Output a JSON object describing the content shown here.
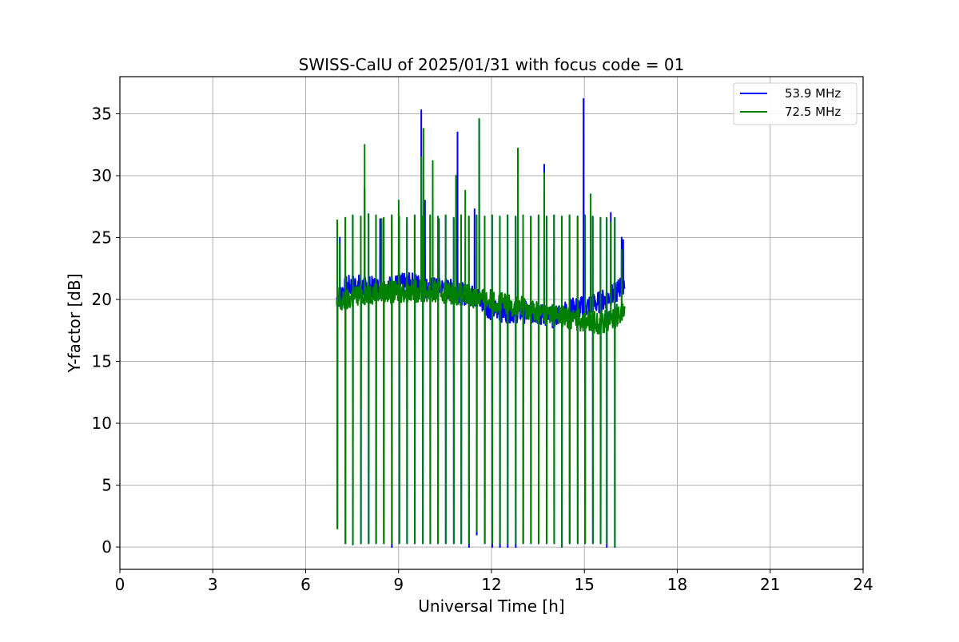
{
  "chart_data": {
    "type": "line",
    "title": "SWISS-CalU of 2025/01/31 with focus code = 01",
    "xlabel": "Universal Time [h]",
    "ylabel": "Y-factor [dB]",
    "xlim": [
      0,
      24
    ],
    "ylim": [
      -1.8,
      38
    ],
    "xticks": [
      0,
      3,
      6,
      9,
      12,
      15,
      18,
      21,
      24
    ],
    "yticks": [
      0,
      5,
      10,
      15,
      20,
      25,
      30,
      35
    ],
    "xtick_labels": [
      "0",
      "3",
      "6",
      "9",
      "12",
      "15",
      "18",
      "21",
      "24"
    ],
    "ytick_labels": [
      "0",
      "5",
      "10",
      "15",
      "20",
      "25",
      "30",
      "35"
    ],
    "grid": true,
    "legend_position": "top-right",
    "x_range_of_data": [
      7.0,
      16.3
    ],
    "series": [
      {
        "name": "53.9 MHz",
        "color": "#0000ff",
        "baseline": [
          [
            7.0,
            20.0
          ],
          [
            7.3,
            21.0
          ],
          [
            7.6,
            21.2
          ],
          [
            8.0,
            21.0
          ],
          [
            8.5,
            20.9
          ],
          [
            9.0,
            21.2
          ],
          [
            9.5,
            21.3
          ],
          [
            10.0,
            20.9
          ],
          [
            10.5,
            20.9
          ],
          [
            11.0,
            20.5
          ],
          [
            11.5,
            20.2
          ],
          [
            12.0,
            19.2
          ],
          [
            12.5,
            19.0
          ],
          [
            13.0,
            19.0
          ],
          [
            13.5,
            18.8
          ],
          [
            14.0,
            18.6
          ],
          [
            14.5,
            19.2
          ],
          [
            15.0,
            19.4
          ],
          [
            15.5,
            19.8
          ],
          [
            16.0,
            20.5
          ],
          [
            16.3,
            21.5
          ]
        ],
        "calibration_spikes": [
          [
            7.02,
            1.5,
            26.4
          ],
          [
            7.28,
            0.3,
            26.6
          ],
          [
            7.52,
            0.2,
            26.8
          ],
          [
            7.78,
            0.3,
            26.7
          ],
          [
            8.03,
            0.3,
            26.9
          ],
          [
            8.27,
            0.3,
            26.8
          ],
          [
            8.52,
            0.3,
            26.6
          ],
          [
            8.78,
            0.0,
            26.8
          ],
          [
            9.02,
            0.3,
            26.7
          ],
          [
            9.27,
            0.3,
            26.6
          ],
          [
            9.52,
            0.3,
            26.8
          ],
          [
            9.78,
            0.3,
            26.7
          ],
          [
            10.02,
            0.3,
            26.8
          ],
          [
            10.27,
            0.3,
            26.7
          ],
          [
            10.52,
            0.3,
            26.8
          ],
          [
            10.78,
            0.3,
            26.6
          ],
          [
            11.02,
            0.3,
            26.8
          ],
          [
            11.27,
            0.0,
            26.7
          ],
          [
            11.52,
            1.0,
            26.8
          ],
          [
            11.78,
            0.3,
            26.7
          ],
          [
            12.02,
            0.0,
            26.8
          ],
          [
            12.27,
            0.0,
            26.7
          ],
          [
            12.52,
            0.0,
            26.8
          ],
          [
            12.78,
            0.0,
            26.7
          ],
          [
            13.02,
            0.3,
            26.8
          ],
          [
            13.27,
            0.3,
            26.7
          ],
          [
            13.52,
            0.3,
            26.8
          ],
          [
            13.78,
            0.3,
            26.7
          ],
          [
            14.02,
            0.3,
            26.8
          ],
          [
            14.27,
            0.0,
            26.7
          ],
          [
            14.52,
            0.3,
            26.8
          ],
          [
            14.78,
            0.3,
            26.7
          ],
          [
            15.02,
            0.3,
            26.8
          ],
          [
            15.27,
            0.3,
            26.7
          ],
          [
            15.52,
            0.3,
            26.6
          ],
          [
            15.72,
            0.0,
            26.6
          ],
          [
            15.98,
            0.0,
            26.6
          ]
        ],
        "rfi_peaks": [
          [
            7.1,
            25.0
          ],
          [
            7.9,
            29.0
          ],
          [
            8.4,
            26.5
          ],
          [
            9.73,
            35.3
          ],
          [
            9.85,
            28.0
          ],
          [
            10.3,
            26.5
          ],
          [
            10.9,
            33.5
          ],
          [
            11.45,
            27.3
          ],
          [
            11.6,
            34.5
          ],
          [
            12.85,
            32.2
          ],
          [
            13.7,
            30.9
          ],
          [
            14.97,
            36.2
          ],
          [
            15.85,
            27.0
          ],
          [
            16.2,
            25.0
          ],
          [
            16.25,
            24.8
          ]
        ]
      },
      {
        "name": "72.5 MHz",
        "color": "#008000",
        "baseline": [
          [
            7.0,
            19.5
          ],
          [
            7.3,
            19.9
          ],
          [
            7.6,
            20.3
          ],
          [
            8.0,
            20.5
          ],
          [
            8.5,
            20.6
          ],
          [
            9.0,
            20.6
          ],
          [
            9.5,
            20.7
          ],
          [
            10.0,
            20.6
          ],
          [
            10.5,
            20.6
          ],
          [
            11.0,
            20.4
          ],
          [
            11.5,
            20.2
          ],
          [
            12.0,
            19.9
          ],
          [
            12.5,
            19.6
          ],
          [
            13.0,
            19.4
          ],
          [
            13.5,
            19.0
          ],
          [
            14.0,
            18.8
          ],
          [
            14.5,
            18.5
          ],
          [
            15.0,
            18.3
          ],
          [
            15.5,
            18.1
          ],
          [
            16.0,
            18.6
          ],
          [
            16.3,
            19.2
          ]
        ],
        "calibration_spikes": [
          [
            7.02,
            1.5,
            26.4
          ],
          [
            7.28,
            0.3,
            26.6
          ],
          [
            7.52,
            0.2,
            26.8
          ],
          [
            7.78,
            0.3,
            26.7
          ],
          [
            8.03,
            0.3,
            26.9
          ],
          [
            8.27,
            0.3,
            26.8
          ],
          [
            8.52,
            0.3,
            26.6
          ],
          [
            8.78,
            0.3,
            26.8
          ],
          [
            9.02,
            0.3,
            26.7
          ],
          [
            9.27,
            0.3,
            26.6
          ],
          [
            9.52,
            0.3,
            26.8
          ],
          [
            9.78,
            0.3,
            26.7
          ],
          [
            10.02,
            0.3,
            26.8
          ],
          [
            10.27,
            0.3,
            26.7
          ],
          [
            10.52,
            0.3,
            26.8
          ],
          [
            10.78,
            0.3,
            26.6
          ],
          [
            11.02,
            0.3,
            26.8
          ],
          [
            11.27,
            0.3,
            26.7
          ],
          [
            11.52,
            1.3,
            26.8
          ],
          [
            11.78,
            0.3,
            26.7
          ],
          [
            12.02,
            0.3,
            26.8
          ],
          [
            12.27,
            0.3,
            26.7
          ],
          [
            12.52,
            0.3,
            26.8
          ],
          [
            12.78,
            0.3,
            26.7
          ],
          [
            13.02,
            0.3,
            26.8
          ],
          [
            13.27,
            0.3,
            26.7
          ],
          [
            13.52,
            0.3,
            26.8
          ],
          [
            13.78,
            0.3,
            26.7
          ],
          [
            14.02,
            0.3,
            26.8
          ],
          [
            14.27,
            0.0,
            26.7
          ],
          [
            14.52,
            0.3,
            26.8
          ],
          [
            14.78,
            0.3,
            26.7
          ],
          [
            15.02,
            0.3,
            26.8
          ],
          [
            15.27,
            0.3,
            26.7
          ],
          [
            15.52,
            0.3,
            26.6
          ],
          [
            15.72,
            0.3,
            26.6
          ],
          [
            15.98,
            0.0,
            26.6
          ]
        ],
        "rfi_peaks": [
          [
            7.1,
            24.5
          ],
          [
            7.9,
            32.5
          ],
          [
            8.45,
            26.5
          ],
          [
            9.0,
            28.0
          ],
          [
            9.73,
            31.5
          ],
          [
            9.8,
            33.8
          ],
          [
            10.1,
            31.2
          ],
          [
            10.85,
            30.0
          ],
          [
            11.15,
            28.8
          ],
          [
            11.6,
            34.6
          ],
          [
            12.85,
            32.2
          ],
          [
            13.7,
            30.2
          ],
          [
            15.2,
            28.5
          ],
          [
            15.85,
            26.2
          ],
          [
            16.2,
            24.0
          ]
        ]
      }
    ]
  }
}
